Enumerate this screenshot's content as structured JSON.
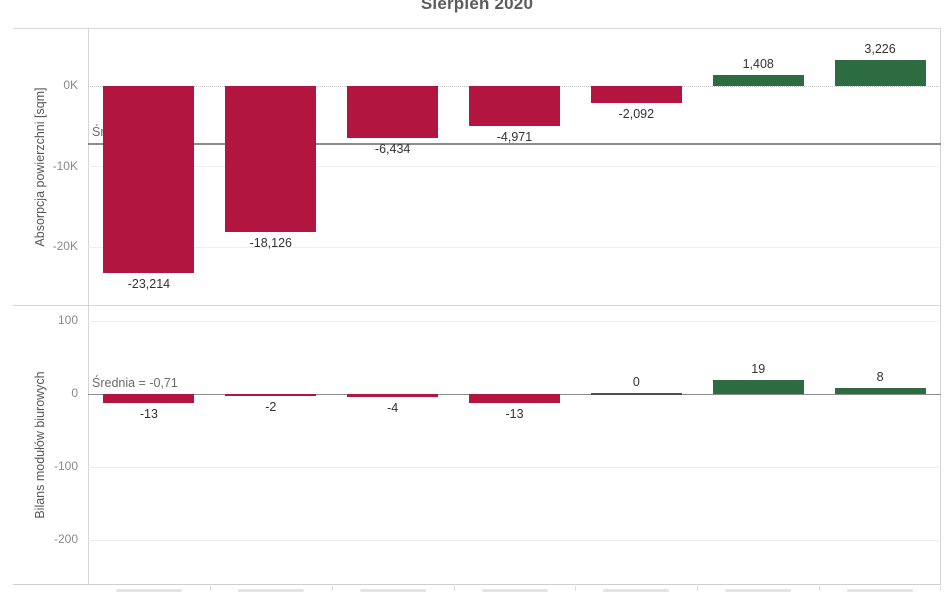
{
  "title": "Sierpień 2020",
  "colors": {
    "negative_bar": "#B21540",
    "positive_bar": "#2D6B40",
    "zero_bar": "#4F4F4F",
    "reference_line": "#8C8C8C"
  },
  "chart_data": [
    {
      "type": "bar",
      "title": "Sierpień 2020",
      "ylabel": "Absorpcja powierzchni [sqm]",
      "values": [
        -23214,
        -18126,
        -6434,
        -4971,
        -2092,
        1408,
        3226
      ],
      "value_labels": [
        "-23,214",
        "-18,126",
        "-6,434",
        "-4,971",
        "-2,092",
        "1,408",
        "3,226"
      ],
      "yticks": [
        {
          "label": "0K",
          "value": 0
        },
        {
          "label": "-10K",
          "value": -10000
        },
        {
          "label": "-20K",
          "value": -20000
        }
      ],
      "ylim": [
        -27200,
        7200
      ],
      "reference_line": {
        "value": -7172,
        "label": "Średnia = -7,172"
      },
      "grid": "horizontal-light",
      "legend": "none",
      "x_axis_labels_cut_off": true
    },
    {
      "type": "bar",
      "ylabel": "Bilans modułów biurowych",
      "values": [
        -13,
        -2,
        -4,
        -13,
        0,
        19,
        8
      ],
      "value_labels": [
        "-13",
        "-2",
        "-4",
        "-13",
        "0",
        "19",
        "8"
      ],
      "yticks": [
        {
          "label": "100",
          "value": 100
        },
        {
          "label": "0",
          "value": 0
        },
        {
          "label": "-100",
          "value": -100
        },
        {
          "label": "-200",
          "value": -200
        }
      ],
      "ylim": [
        -260,
        122
      ],
      "reference_line": {
        "value": -0.71,
        "label": "Średnia = -0,71"
      },
      "grid": "horizontal-light",
      "legend": "none",
      "x_axis_labels_cut_off": true
    }
  ]
}
